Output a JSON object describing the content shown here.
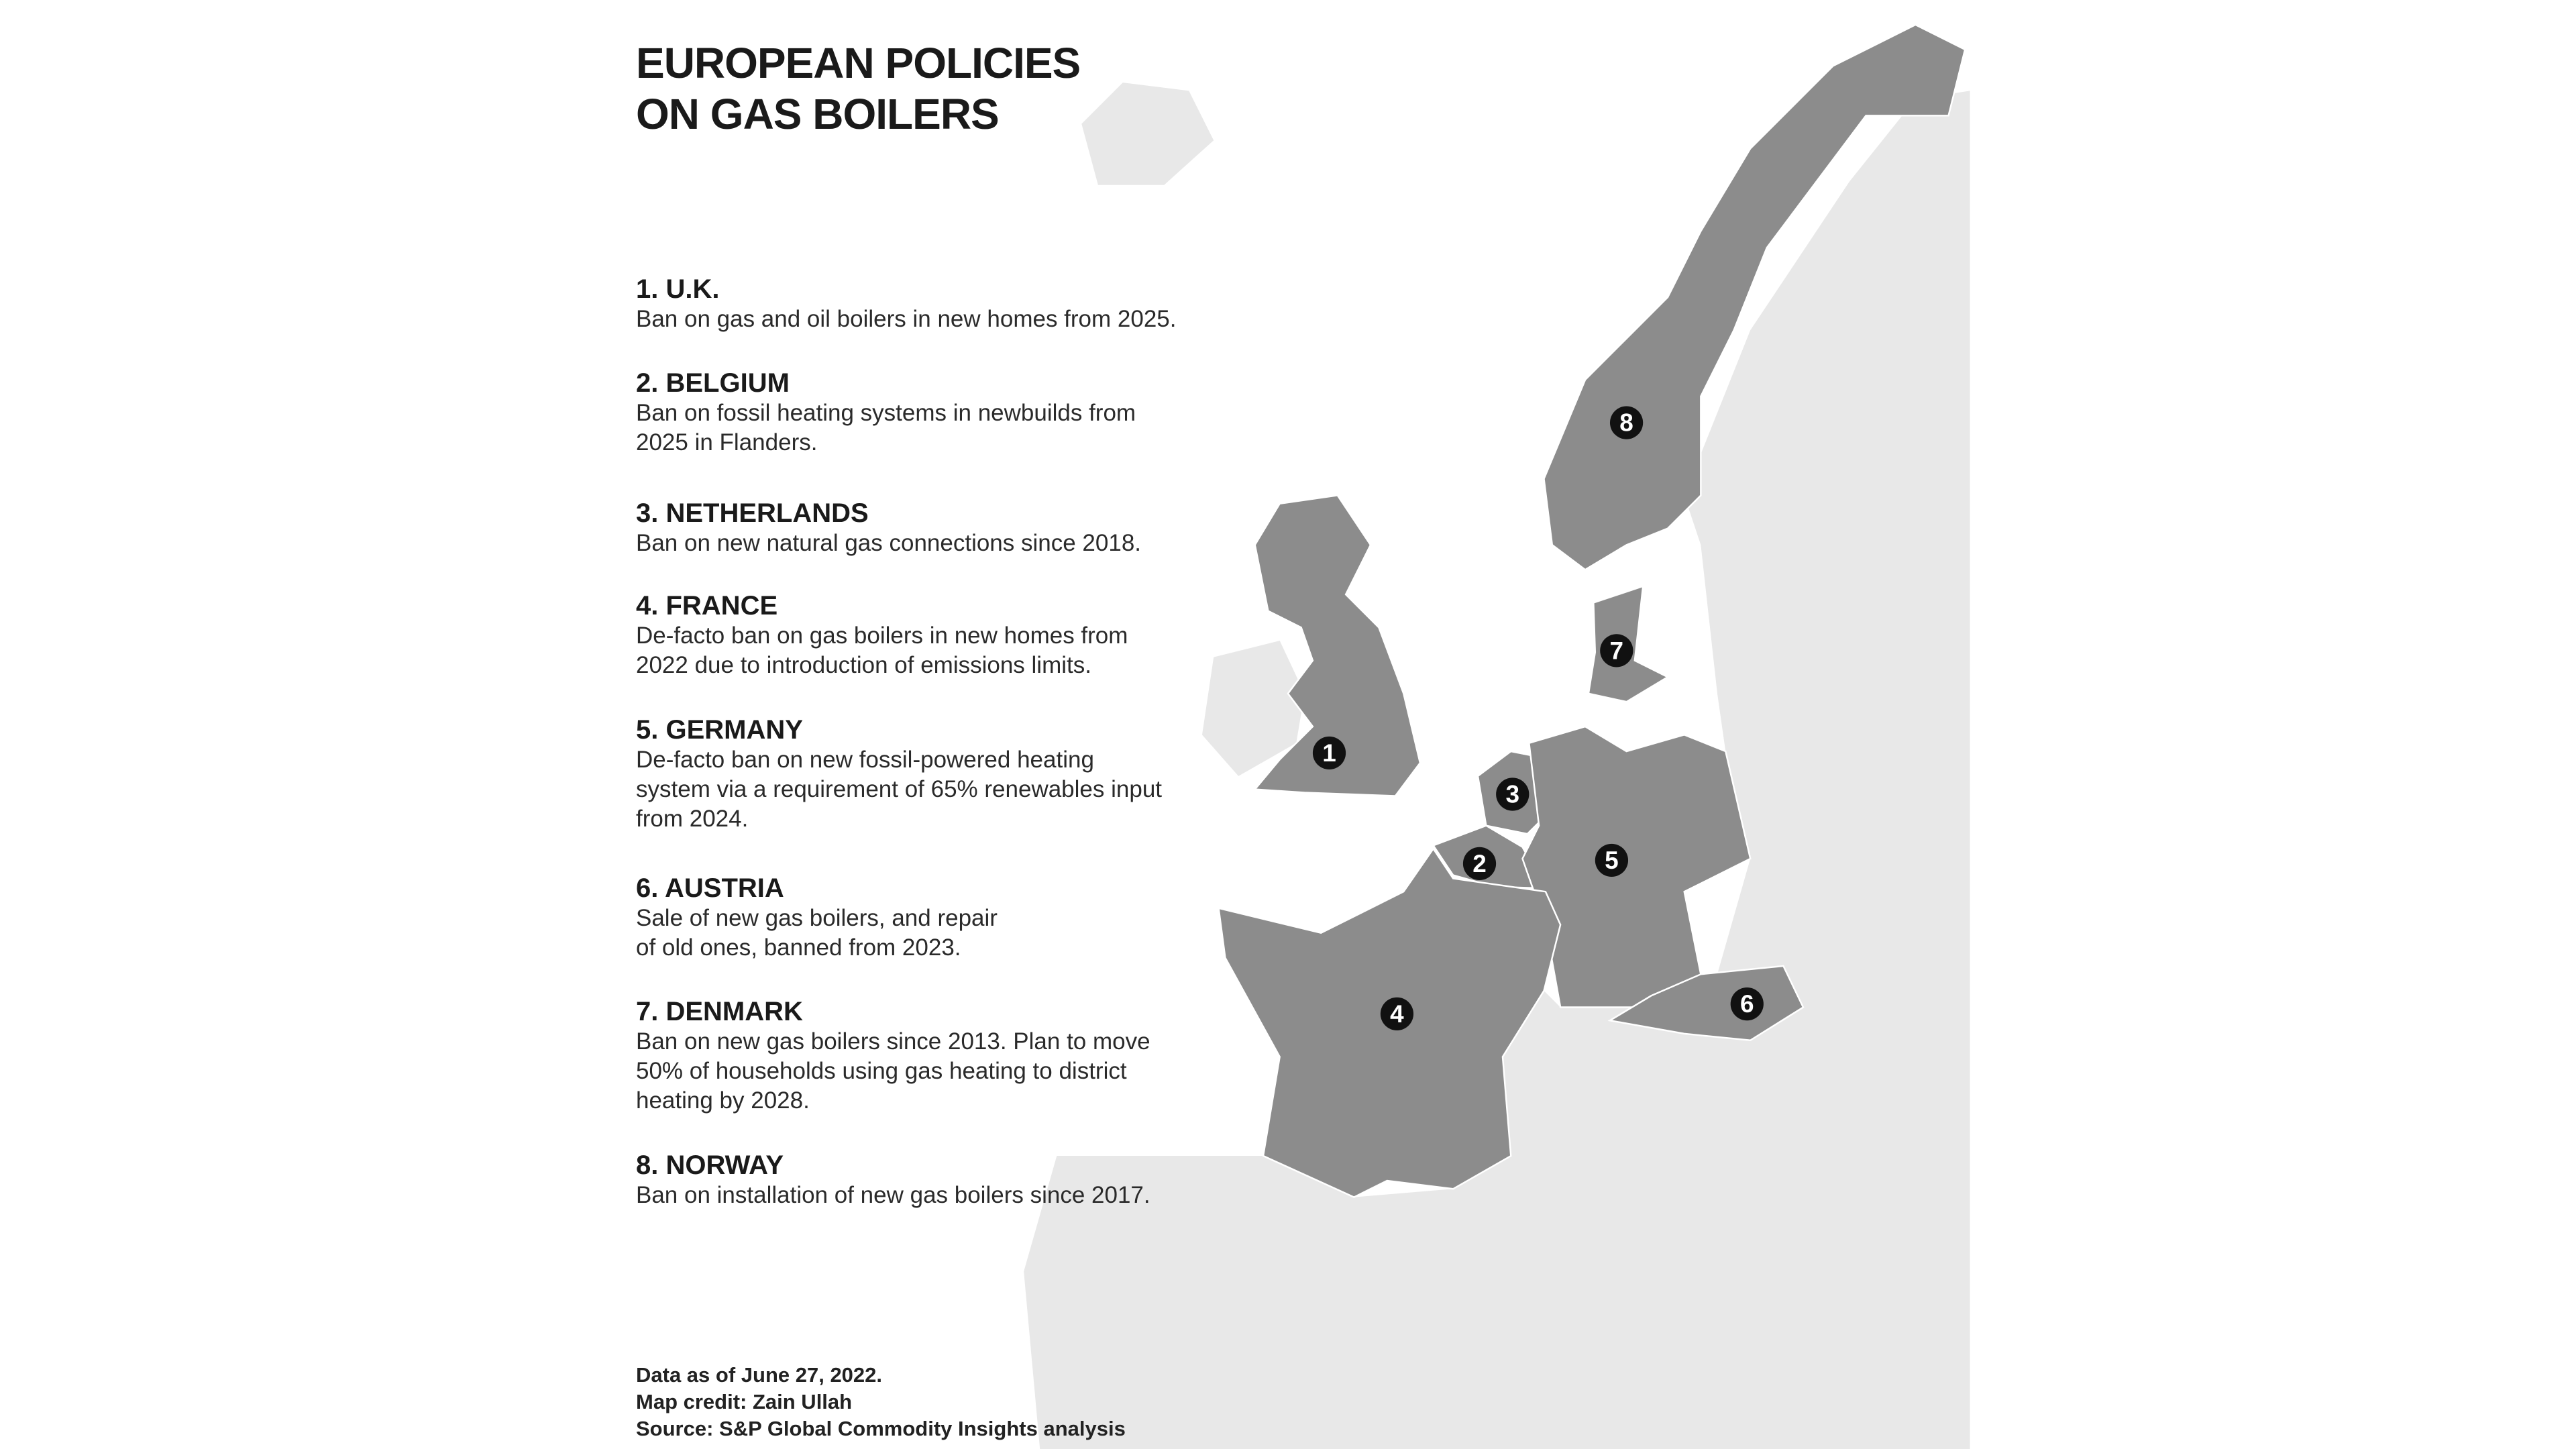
{
  "title_line1": "EUROPEAN POLICIES",
  "title_line2": "ON GAS BOILERS",
  "colors": {
    "policy_country": "#8c8c8c",
    "other_land": "#e8e8e8",
    "marker": "#111111",
    "text": "#1a1a1a"
  },
  "items": [
    {
      "heading": "1. U.K.",
      "lines": [
        "Ban on gas and oil boilers in new homes from 2025."
      ],
      "marker": "1"
    },
    {
      "heading": "2. BELGIUM",
      "lines": [
        "Ban on fossil heating systems in newbuilds from",
        "2025 in Flanders."
      ],
      "marker": "2"
    },
    {
      "heading": "3. NETHERLANDS",
      "lines": [
        "Ban on new natural gas connections since 2018."
      ],
      "marker": "3"
    },
    {
      "heading": "4. FRANCE",
      "lines": [
        "De-facto ban on gas boilers in new homes from",
        "2022 due to introduction of emissions limits."
      ],
      "marker": "4"
    },
    {
      "heading": "5. GERMANY",
      "lines": [
        "De-facto ban on new fossil-powered heating",
        "system via a requirement of 65% renewables input",
        "from 2024."
      ],
      "marker": "5"
    },
    {
      "heading": "6. AUSTRIA",
      "lines": [
        "Sale of new gas boilers, and repair",
        "of old ones, banned from 2023."
      ],
      "marker": "6"
    },
    {
      "heading": "7. DENMARK",
      "lines": [
        "Ban on new gas boilers since 2013. Plan to move",
        "50% of households using gas heating to district",
        "heating by 2028."
      ],
      "marker": "7"
    },
    {
      "heading": "8. NORWAY",
      "lines": [
        "Ban on installation of new gas boilers since 2017."
      ],
      "marker": "8"
    }
  ],
  "footnotes": [
    "Data as of June 27, 2022.",
    "Map credit: Zain Ullah",
    "Source: S&P Global Commodity Insights analysis"
  ]
}
